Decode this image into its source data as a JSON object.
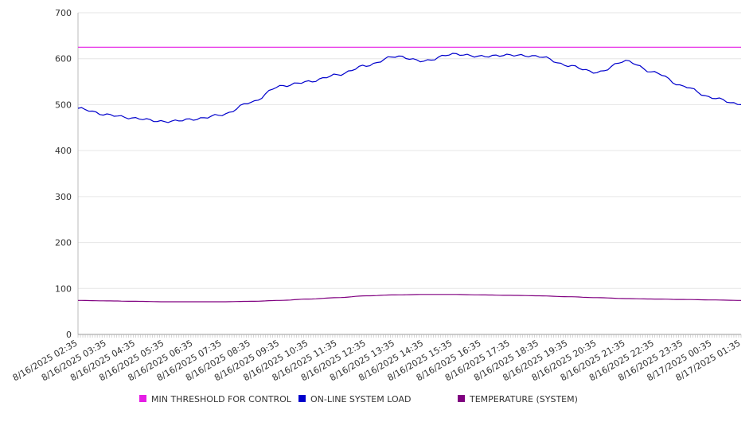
{
  "chart_data": {
    "type": "line",
    "title": "",
    "xlabel": "",
    "ylabel": "",
    "ylim": [
      0,
      700
    ],
    "y_ticks": [
      0,
      100,
      200,
      300,
      400,
      500,
      600,
      700
    ],
    "grid": true,
    "legend_position": "bottom",
    "x": [
      "8/16/2025 02:35",
      "8/16/2025 03:35",
      "8/16/2025 04:35",
      "8/16/2025 05:35",
      "8/16/2025 06:35",
      "8/16/2025 07:35",
      "8/16/2025 08:35",
      "8/16/2025 09:35",
      "8/16/2025 10:35",
      "8/16/2025 11:35",
      "8/16/2025 12:35",
      "8/16/2025 13:35",
      "8/16/2025 14:35",
      "8/16/2025 15:35",
      "8/16/2025 16:35",
      "8/16/2025 17:35",
      "8/16/2025 18:35",
      "8/16/2025 19:35",
      "8/16/2025 20:35",
      "8/16/2025 21:35",
      "8/16/2025 22:35",
      "8/16/2025 23:35",
      "8/17/2025 00:35",
      "8/17/2025 01:35"
    ],
    "series": [
      {
        "name": "MIN THRESHOLD FOR CONTROL",
        "color": "#e51ee5",
        "values": [
          625,
          625,
          625,
          625,
          625,
          625,
          625,
          625,
          625,
          625,
          625,
          625,
          625,
          625,
          625,
          625,
          625,
          625,
          625,
          625,
          625,
          625,
          625,
          625
        ]
      },
      {
        "name": "ON-LINE SYSTEM LOAD",
        "color": "#0000cc",
        "values": [
          492,
          478,
          470,
          463,
          468,
          478,
          505,
          540,
          550,
          565,
          585,
          605,
          595,
          610,
          605,
          608,
          605,
          585,
          570,
          595,
          570,
          540,
          515,
          500
        ]
      },
      {
        "name": "TEMPERATURE (SYSTEM)",
        "color": "#800080",
        "values": [
          74,
          73,
          72,
          71,
          71,
          71,
          72,
          74,
          77,
          80,
          84,
          86,
          87,
          87,
          86,
          85,
          84,
          82,
          80,
          78,
          77,
          76,
          75,
          74
        ]
      }
    ]
  }
}
